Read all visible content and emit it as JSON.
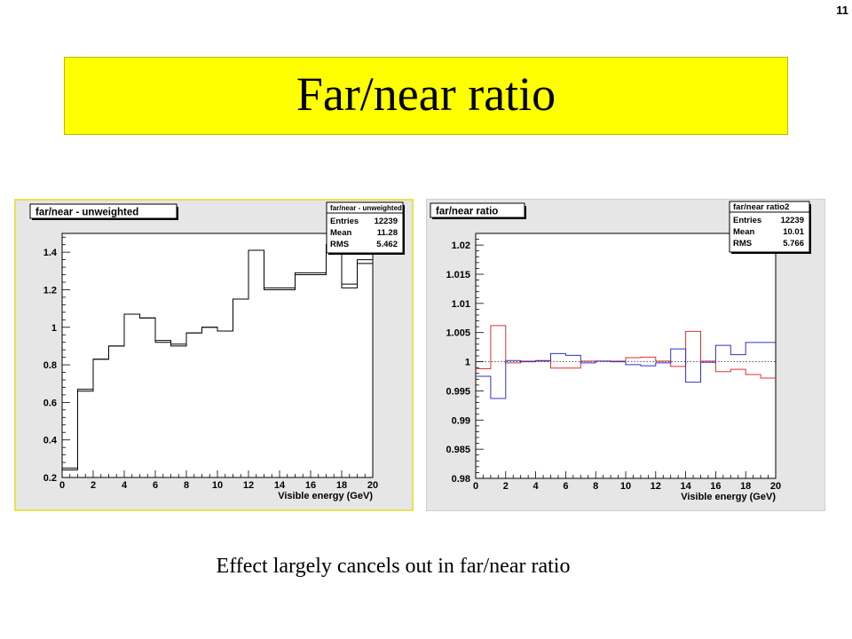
{
  "page_number": "11",
  "title": "Far/near ratio",
  "caption": "Effect largely cancels out in far/near ratio",
  "colors": {
    "title_bg": "#ffff00",
    "series_red": "#e03030",
    "series_blue": "#3030c8",
    "line_black": "#000000"
  },
  "chart_data": [
    {
      "type": "line",
      "title": "far/near - unweighted",
      "xlabel": "Visible energy (GeV)",
      "ylabel": "",
      "xlim": [
        0,
        20
      ],
      "ylim": [
        0.2,
        1.5
      ],
      "xticks": [
        0,
        2,
        4,
        6,
        8,
        10,
        12,
        14,
        16,
        18,
        20
      ],
      "yticks": [
        0.2,
        0.4,
        0.6,
        0.8,
        1,
        1.2,
        1.4
      ],
      "stats": {
        "name": "far/near - unweighted",
        "rows": [
          [
            "Entries",
            "12239"
          ],
          [
            "Mean",
            "11.28"
          ],
          [
            "RMS",
            "5.462"
          ]
        ]
      },
      "bin_edges": [
        0,
        1,
        2,
        3,
        4,
        5,
        6,
        7,
        8,
        9,
        10,
        11,
        12,
        13,
        14,
        15,
        16,
        17,
        18,
        19,
        20
      ],
      "series": [
        {
          "values": [
            0.25,
            0.67,
            0.83,
            0.9,
            1.07,
            1.05,
            0.92,
            0.9,
            0.97,
            1.0,
            0.98,
            1.15,
            1.41,
            1.21,
            1.21,
            1.29,
            1.29,
            1.44,
            1.23,
            1.34
          ],
          "color": "#000000"
        },
        {
          "values": [
            0.24,
            0.66,
            0.83,
            0.9,
            1.07,
            1.05,
            0.93,
            0.91,
            0.97,
            1.0,
            0.98,
            1.15,
            1.41,
            1.2,
            1.2,
            1.28,
            1.28,
            1.44,
            1.21,
            1.36
          ],
          "color": "#000000"
        }
      ]
    },
    {
      "type": "line",
      "title": "far/near ratio",
      "xlabel": "Visible energy (GeV)",
      "ylabel": "",
      "xlim": [
        0,
        20
      ],
      "ylim": [
        0.98,
        1.022
      ],
      "xticks": [
        0,
        2,
        4,
        6,
        8,
        10,
        12,
        14,
        16,
        18,
        20
      ],
      "yticks": [
        0.98,
        0.985,
        0.99,
        0.995,
        1,
        1.005,
        1.01,
        1.015,
        1.02
      ],
      "reference_line": 1,
      "stats": {
        "name": "far/near ratio2",
        "rows": [
          [
            "Entries",
            "12239"
          ],
          [
            "Mean",
            "10.01"
          ],
          [
            "RMS",
            "5.766"
          ]
        ]
      },
      "bin_edges": [
        0,
        1,
        2,
        3,
        4,
        5,
        6,
        7,
        8,
        9,
        10,
        11,
        12,
        13,
        14,
        15,
        16,
        17,
        18,
        19,
        20
      ],
      "series": [
        {
          "values": [
            0.9988,
            1.0062,
            0.9998,
            1.0001,
            1.0001,
            0.9989,
            0.9989,
            1.0001,
            1.0001,
            1.0001,
            1.0007,
            1.0008,
            1.0001,
            0.9992,
            1.0052,
            1.0001,
            0.9983,
            0.9987,
            0.9978,
            0.9972
          ],
          "color": "#e03030"
        },
        {
          "values": [
            0.9975,
            0.9937,
            1.0002,
            1.0,
            1.0002,
            1.0014,
            1.0011,
            0.9998,
            1.0001,
            1.0,
            0.9995,
            0.9993,
            0.9998,
            1.0022,
            0.9965,
            0.9999,
            1.0028,
            1.0012,
            1.0033,
            1.0033
          ],
          "color": "#3030c8"
        }
      ]
    }
  ]
}
